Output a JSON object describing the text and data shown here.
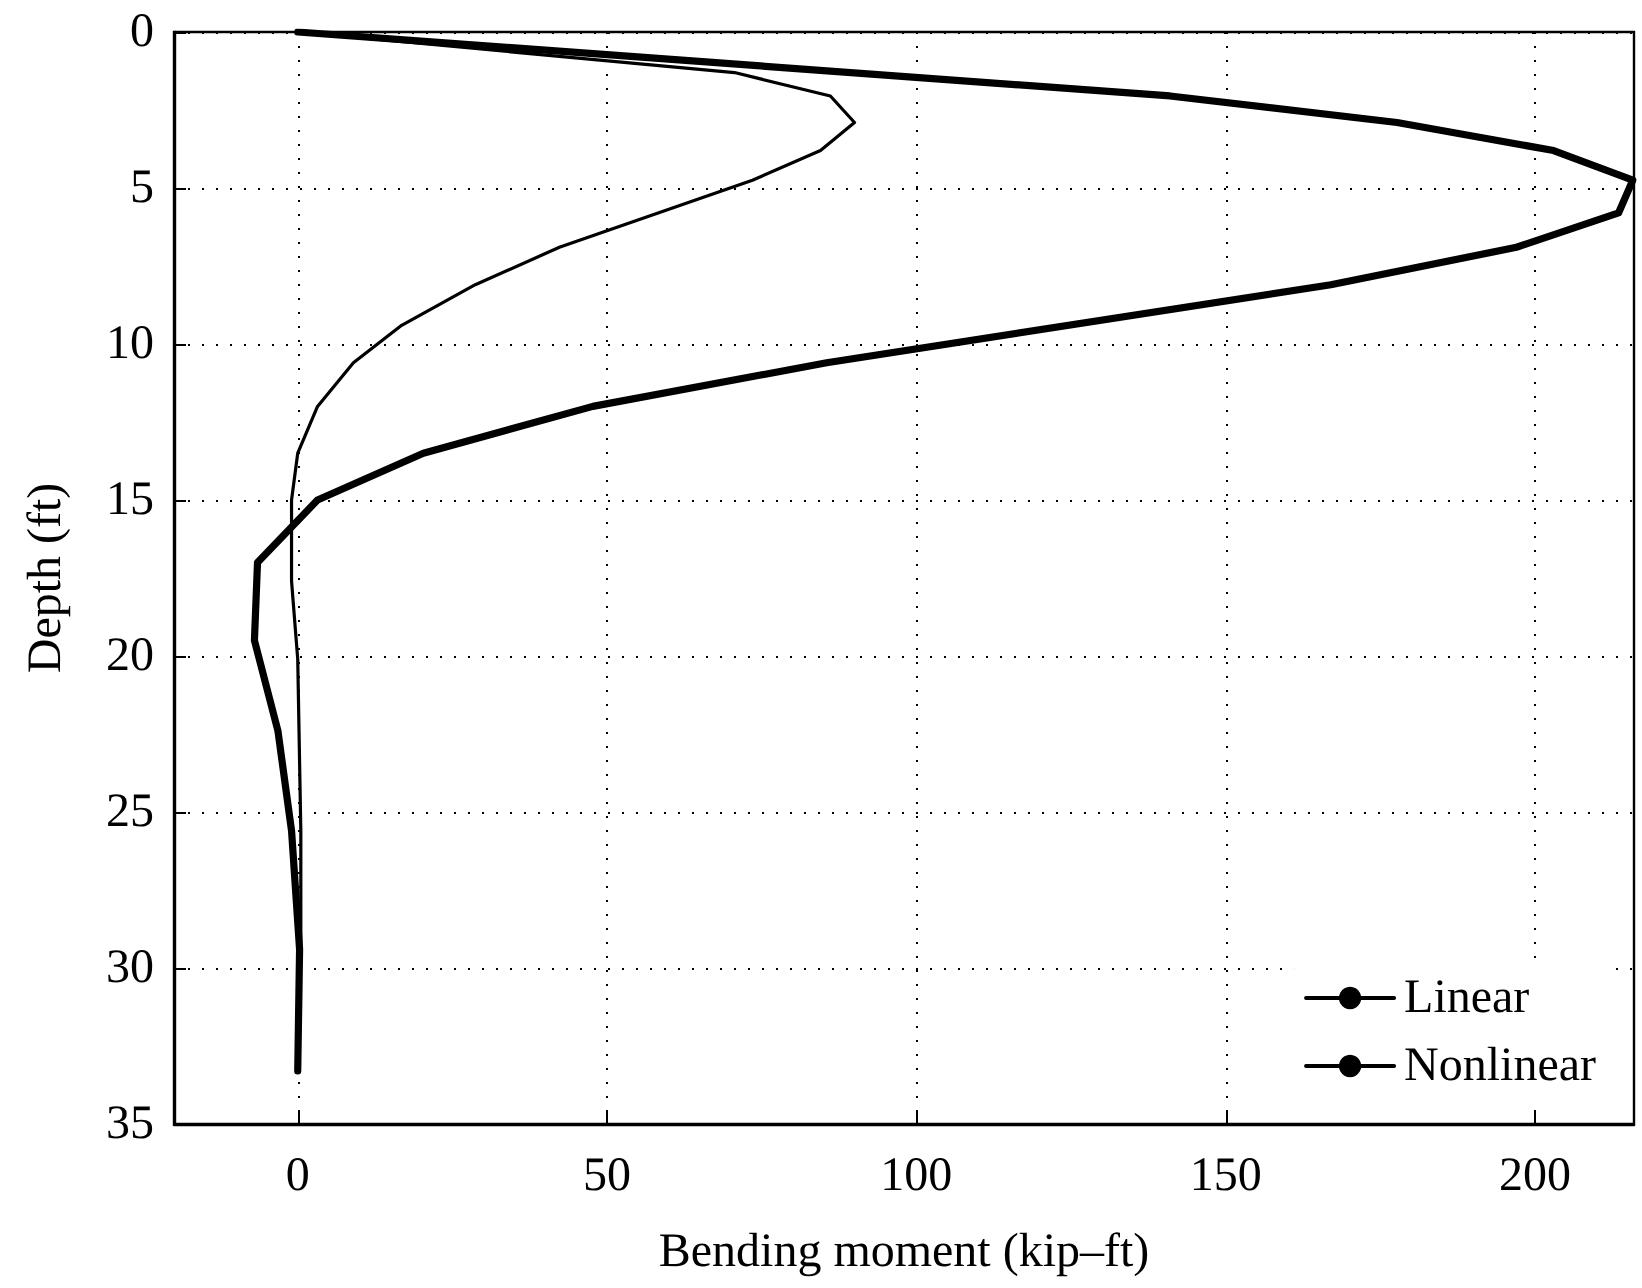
{
  "chart_data": {
    "type": "line",
    "xlabel": "Bending moment (kip–ft)",
    "ylabel": "Depth (ft)",
    "xlim": [
      -20,
      216
    ],
    "xticks": [
      0,
      50,
      100,
      150,
      200
    ],
    "ylim": [
      35,
      0
    ],
    "yticks": [
      0,
      5,
      10,
      15,
      20,
      25,
      30,
      35
    ],
    "grid": true,
    "legend": "bottom right",
    "marker": "none",
    "line_style": "solid",
    "series": [
      {
        "name": "Linear",
        "color": "#000000",
        "x": [
          0,
          70.6,
          86.1,
          90,
          84.5,
          73.5,
          42.3,
          28.7,
          16.8,
          9,
          3.2,
          0,
          -1,
          -1,
          0,
          0.5,
          0.5,
          0
        ],
        "values": [
          0,
          1.3,
          2.05,
          2.9,
          3.8,
          4.75,
          6.9,
          8.1,
          9.4,
          10.6,
          12,
          13.5,
          15,
          17.6,
          20.1,
          25.6,
          29.4,
          33.3
        ]
      },
      {
        "name": "Nonlinear",
        "color": "#000000",
        "x": [
          0,
          141,
          177.7,
          203,
          215.8,
          213.5,
          197,
          167,
          85.5,
          47.7,
          20.3,
          3.2,
          -6.5,
          -7,
          -3.2,
          -1,
          0.3,
          0
        ],
        "values": [
          0,
          2.05,
          2.9,
          3.8,
          4.75,
          5.8,
          6.9,
          8.1,
          10.6,
          12,
          13.5,
          15,
          17,
          19.5,
          22.4,
          25.6,
          29.4,
          33.3
        ]
      }
    ]
  }
}
